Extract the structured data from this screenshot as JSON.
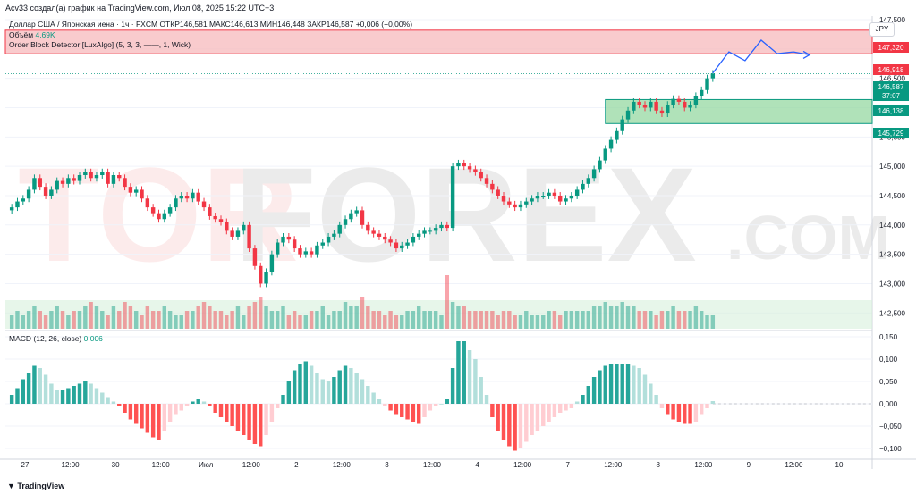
{
  "header": {
    "caption": "Acv33 создал(а) график на TradingView.com, Июл 08, 2025 15:22 UTC+3"
  },
  "symbol_line": {
    "name": "Доллар США / Японская иена · 1ч · FXCM",
    "ohlc": "ОТКР146,581  МАКС146,613  МИН146,448  ЗАКР146,587  +0,006 (+0,00%)"
  },
  "volume_line": {
    "label": "Объём",
    "value": "4,69K"
  },
  "indicator_line": {
    "label": "Order Block Detector [LuxAlgo] (5, 3, 3, ——, 1, Wick)"
  },
  "currency_badge": "JPY",
  "watermark": {
    "left": "TOR",
    "mid": "FOREX",
    "dot": ".COM"
  },
  "price_labels": {
    "resist_top": "147,320",
    "resist_bottom": "146,918",
    "last": "146,587",
    "countdown": "37:07",
    "support_top": "146,138",
    "support_bottom": "145,729"
  },
  "colors": {
    "up": "#089981",
    "down": "#f23645",
    "forecast": "#2962ff",
    "resist_zone": "#f7b5b8",
    "support_zone": "#8ed69b"
  },
  "macd": {
    "label": "MACD (12, 26, close)",
    "value": "0,006"
  },
  "x_labels": [
    "27",
    "12:00",
    "30",
    "12:00",
    "Июл",
    "12:00",
    "2",
    "12:00",
    "3",
    "12:00",
    "4",
    "12:00",
    "7",
    "12:00",
    "8",
    "12:00",
    "9",
    "12:00",
    "10"
  ],
  "footer": {
    "brand": "TradingView"
  },
  "chart_data": [
    {
      "type": "candlestick",
      "title": "Доллар США / Японская иена · 1ч · FXCM",
      "ylim": [
        142.2,
        147.5
      ],
      "y_ticks": [
        142.5,
        143.0,
        143.5,
        144.0,
        144.5,
        145.0,
        145.5,
        146.0,
        146.5,
        147.0,
        147.5
      ],
      "close": [
        144.3,
        144.4,
        144.45,
        144.6,
        144.8,
        144.65,
        144.5,
        144.6,
        144.75,
        144.7,
        144.8,
        144.75,
        144.85,
        144.9,
        144.8,
        144.85,
        144.9,
        144.7,
        144.85,
        144.8,
        144.65,
        144.55,
        144.6,
        144.45,
        144.3,
        144.2,
        144.1,
        144.2,
        144.3,
        144.45,
        144.5,
        144.45,
        144.55,
        144.4,
        144.3,
        144.15,
        144.1,
        144.05,
        143.9,
        143.8,
        143.9,
        144.0,
        143.6,
        143.3,
        143.0,
        143.2,
        143.5,
        143.7,
        143.8,
        143.75,
        143.6,
        143.5,
        143.55,
        143.5,
        143.65,
        143.7,
        143.8,
        143.85,
        144.0,
        144.1,
        144.2,
        144.25,
        144.0,
        143.9,
        143.85,
        143.8,
        143.75,
        143.7,
        143.6,
        143.65,
        143.7,
        143.8,
        143.85,
        143.9,
        143.9,
        143.95,
        144.0,
        143.95,
        145.0,
        145.05,
        145.0,
        144.95,
        144.9,
        144.8,
        144.7,
        144.6,
        144.5,
        144.4,
        144.35,
        144.3,
        144.35,
        144.4,
        144.45,
        144.5,
        144.5,
        144.55,
        144.5,
        144.4,
        144.45,
        144.5,
        144.6,
        144.7,
        144.8,
        144.95,
        145.1,
        145.3,
        145.45,
        145.6,
        145.8,
        145.95,
        146.1,
        146.05,
        146.0,
        146.1,
        145.95,
        145.9,
        146.05,
        146.15,
        146.1,
        146.0,
        146.05,
        146.2,
        146.3,
        146.5,
        146.58
      ],
      "volume_ylim": [
        0,
        12
      ],
      "volume": [
        3,
        4,
        3,
        4,
        5,
        4,
        3,
        4,
        5,
        4,
        3,
        4,
        4,
        5,
        6,
        5,
        4,
        3,
        5,
        4,
        6,
        5,
        4,
        3,
        5,
        4,
        4,
        5,
        4,
        3,
        3,
        4,
        4,
        5,
        6,
        5,
        4,
        4,
        3,
        4,
        5,
        3,
        5,
        6,
        7,
        5,
        4,
        4,
        5,
        3,
        4,
        3,
        3,
        4,
        4,
        5,
        3,
        4,
        4,
        6,
        5,
        5,
        7,
        5,
        4,
        4,
        3,
        4,
        3,
        3,
        4,
        4,
        5,
        4,
        4,
        4,
        3,
        12,
        6,
        5,
        5,
        4,
        4,
        4,
        4,
        4,
        3,
        4,
        4,
        3,
        3,
        4,
        3,
        3,
        3,
        4,
        4,
        3,
        4,
        4,
        4,
        4,
        4,
        5,
        5,
        6,
        5,
        5,
        6,
        5,
        5,
        4,
        4,
        4,
        3,
        4,
        4,
        5,
        4,
        4,
        4,
        5,
        4,
        3,
        3
      ],
      "forecast_path": [
        146.59,
        146.95,
        146.8,
        147.15,
        146.92,
        146.95,
        146.9
      ],
      "resistance_zone": [
        146.918,
        147.32
      ],
      "support_zone": [
        145.729,
        146.138
      ]
    },
    {
      "type": "histogram",
      "title": "MACD (12, 26, close)",
      "ylim": [
        -0.12,
        0.16
      ],
      "y_ticks": [
        0.15,
        0.1,
        0.05,
        0.0,
        -0.05,
        -0.1
      ],
      "values": [
        0.02,
        0.035,
        0.055,
        0.07,
        0.085,
        0.08,
        0.065,
        0.045,
        0.03,
        0.03,
        0.035,
        0.04,
        0.045,
        0.05,
        0.045,
        0.035,
        0.025,
        0.015,
        0.005,
        -0.005,
        -0.02,
        -0.035,
        -0.045,
        -0.055,
        -0.065,
        -0.075,
        -0.08,
        -0.06,
        -0.04,
        -0.025,
        -0.015,
        -0.005,
        0.005,
        0.01,
        0.005,
        -0.005,
        -0.02,
        -0.03,
        -0.04,
        -0.05,
        -0.06,
        -0.07,
        -0.08,
        -0.09,
        -0.095,
        -0.07,
        -0.04,
        -0.01,
        0.02,
        0.05,
        0.075,
        0.09,
        0.095,
        0.085,
        0.07,
        0.055,
        0.05,
        0.06,
        0.075,
        0.085,
        0.08,
        0.07,
        0.055,
        0.04,
        0.025,
        0.01,
        -0.005,
        -0.015,
        -0.025,
        -0.03,
        -0.035,
        -0.04,
        -0.045,
        -0.03,
        -0.015,
        -0.005,
        0.0,
        0.01,
        0.08,
        0.14,
        0.14,
        0.12,
        0.1,
        0.06,
        0.02,
        -0.03,
        -0.06,
        -0.08,
        -0.095,
        -0.105,
        -0.1,
        -0.085,
        -0.07,
        -0.06,
        -0.05,
        -0.04,
        -0.03,
        -0.02,
        -0.015,
        -0.01,
        0.005,
        0.02,
        0.04,
        0.06,
        0.075,
        0.085,
        0.09,
        0.09,
        0.09,
        0.09,
        0.085,
        0.08,
        0.065,
        0.045,
        0.02,
        -0.01,
        -0.025,
        -0.035,
        -0.04,
        -0.045,
        -0.045,
        -0.04,
        -0.025,
        -0.01,
        0.006
      ]
    }
  ]
}
